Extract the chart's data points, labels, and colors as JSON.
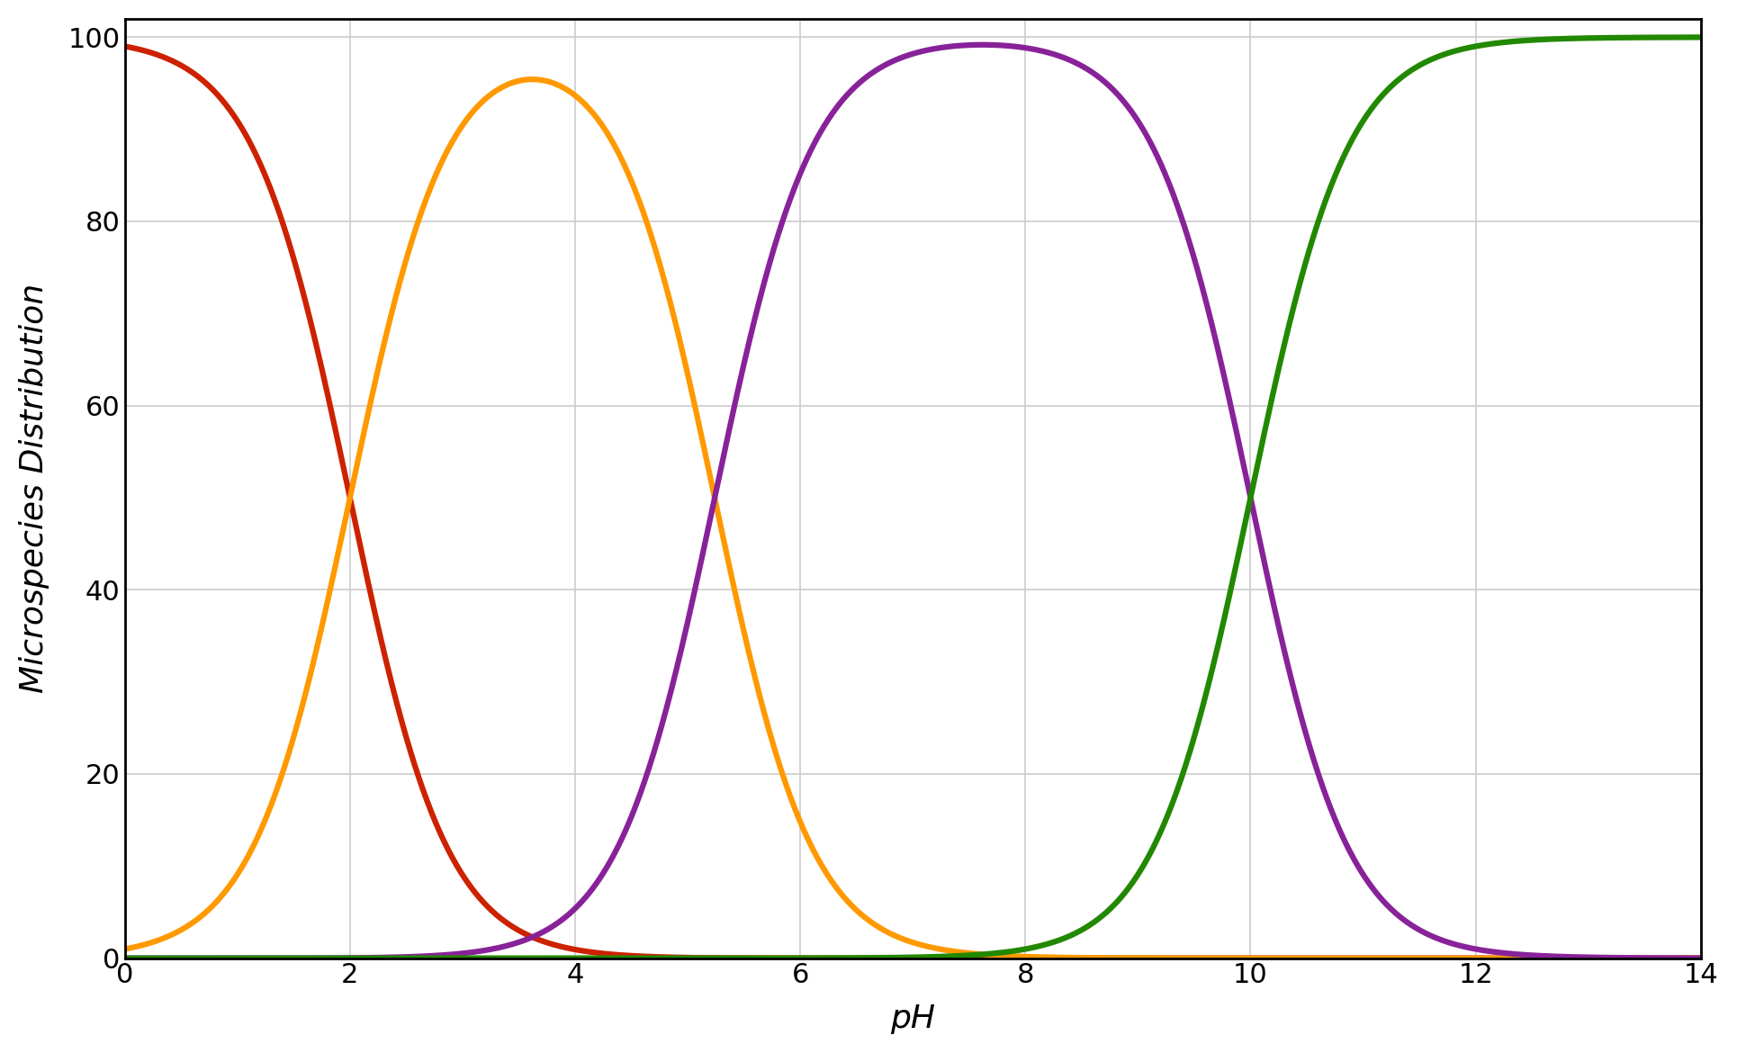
{
  "pKa1": 2.0,
  "pKa2": 5.24,
  "pKa3": 10.0,
  "pH_min": 0,
  "pH_max": 14,
  "n_points": 3000,
  "colors": {
    "species0": "#cc2200",
    "species1": "#ff9900",
    "species2": "#882299",
    "species3": "#228800"
  },
  "linewidth": 4.5,
  "ylabel": "Microspecies Distribution",
  "xlabel": "pH",
  "xlabel_style": "italic",
  "ylabel_style": "italic",
  "ylim": [
    0,
    102
  ],
  "yticks": [
    0,
    20,
    40,
    60,
    80,
    100
  ],
  "xticks": [
    0,
    2,
    4,
    6,
    8,
    10,
    12,
    14
  ],
  "grid_color": "#cccccc",
  "grid_linewidth": 1.2,
  "background_color": "#ffffff",
  "tick_label_fontsize": 22,
  "axis_label_fontsize": 26,
  "fig_width": 19.3,
  "fig_height": 11.7,
  "spine_color_left": "#000000",
  "spine_color_bottom": "#000000",
  "spine_color_top": "#000000",
  "spine_color_right": "#000000",
  "spine_linewidth": 2.0
}
